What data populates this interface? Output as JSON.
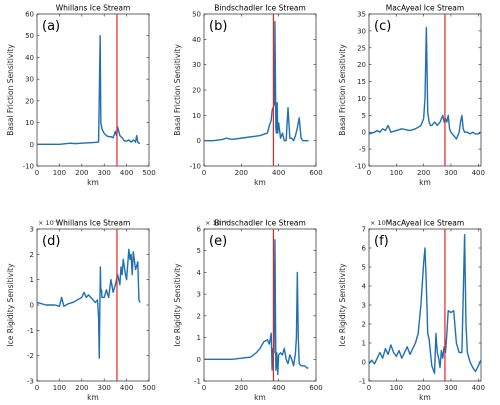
{
  "chart_data": [
    {
      "type": "line",
      "panel": "(a)",
      "title": "Whillans Ice Stream",
      "xlabel": "km",
      "ylabel": "Basal Friction Sensitivity",
      "xlim": [
        0,
        500
      ],
      "ylim": [
        -10,
        60
      ],
      "xticks": [
        0,
        100,
        200,
        300,
        400,
        500
      ],
      "yticks": [
        -10,
        0,
        10,
        20,
        30,
        40,
        50,
        60
      ],
      "exponent": "",
      "grid": false,
      "marker_km": 357,
      "line_color": "#1f6fb2",
      "marker_color": "#e8211f",
      "series": [
        {
          "x": [
            0,
            50,
            100,
            150,
            170,
            200,
            250,
            275,
            282,
            285,
            290,
            300,
            310,
            320,
            330,
            340,
            350,
            355,
            360,
            365,
            370,
            380,
            390,
            400,
            410,
            420,
            430,
            440,
            445,
            450,
            455,
            460
          ],
          "y": [
            0,
            0,
            0,
            0.5,
            0.3,
            0.5,
            0.8,
            1,
            50,
            10,
            7,
            5,
            4,
            3.5,
            3.5,
            3,
            6,
            4,
            8,
            6,
            4,
            3,
            1.5,
            1.5,
            2,
            1,
            2,
            1,
            4,
            1,
            0.5,
            0.5
          ]
        }
      ]
    },
    {
      "type": "line",
      "panel": "(b)",
      "title": "Bindschadler Ice Stream",
      "xlabel": "km",
      "ylabel": "Basal Friction Sensitivity",
      "xlim": [
        0,
        600
      ],
      "ylim": [
        -10,
        50
      ],
      "xticks": [
        0,
        200,
        400,
        600
      ],
      "yticks": [
        -10,
        0,
        10,
        20,
        30,
        40,
        50
      ],
      "exponent": "",
      "grid": false,
      "marker_km": 372,
      "line_color": "#1f6fb2",
      "marker_color": "#e8211f",
      "series": [
        {
          "x": [
            0,
            50,
            100,
            120,
            150,
            200,
            250,
            300,
            340,
            350,
            360,
            365,
            370,
            375,
            378,
            380,
            385,
            388,
            392,
            395,
            400,
            410,
            420,
            430,
            440,
            450,
            460,
            470,
            480,
            490,
            500,
            510,
            520,
            530,
            540,
            560
          ],
          "y": [
            0,
            0,
            0.5,
            1,
            0.5,
            1,
            1.5,
            2,
            3,
            6,
            8,
            12,
            13,
            14,
            15,
            47,
            5,
            3,
            15,
            3,
            7,
            1,
            3,
            0,
            0,
            13,
            1,
            1,
            0,
            2,
            5,
            9,
            1,
            0,
            0,
            0
          ]
        }
      ]
    },
    {
      "type": "line",
      "panel": "(c)",
      "title": "MacAyeal Ice Stream",
      "xlabel": "km",
      "ylabel": "Basal Friction Sensitivity",
      "xlim": [
        0,
        410
      ],
      "ylim": [
        -10,
        35
      ],
      "xticks": [
        0,
        100,
        200,
        300,
        400
      ],
      "yticks": [
        -10,
        -5,
        0,
        5,
        10,
        15,
        20,
        25,
        30,
        35
      ],
      "exponent": "",
      "grid": false,
      "marker_km": 278,
      "line_color": "#1f6fb2",
      "marker_color": "#e8211f",
      "series": [
        {
          "x": [
            0,
            20,
            30,
            40,
            50,
            60,
            70,
            80,
            100,
            120,
            150,
            170,
            190,
            200,
            205,
            210,
            215,
            220,
            225,
            230,
            240,
            250,
            260,
            265,
            270,
            275,
            280,
            285,
            290,
            295,
            300,
            310,
            320,
            330,
            335,
            340,
            345,
            350,
            360,
            370,
            380,
            390,
            400,
            410
          ],
          "y": [
            -0.5,
            0,
            0.5,
            0,
            1,
            0.5,
            2,
            0,
            0.5,
            1,
            0.5,
            1,
            2,
            4,
            10,
            31,
            6,
            3,
            2,
            2,
            3,
            2,
            3,
            4,
            5,
            3,
            4,
            3,
            5,
            1,
            0,
            -1,
            -2,
            0,
            3,
            5,
            1,
            0,
            0,
            -0.5,
            0,
            -0.5,
            -0.5,
            0
          ]
        }
      ]
    },
    {
      "type": "line",
      "panel": "(d)",
      "title": "Whillans Ice Stream",
      "xlabel": "km",
      "ylabel": "Ice Rigidity Sensitivity",
      "xlim": [
        0,
        500
      ],
      "ylim": [
        -3,
        3
      ],
      "xticks": [
        0,
        100,
        200,
        300,
        400,
        500
      ],
      "yticks": [
        -3,
        -2,
        -1,
        0,
        1,
        2,
        3
      ],
      "exponent": "× 10⁻⁵",
      "grid": false,
      "marker_km": 357,
      "line_color": "#1f6fb2",
      "marker_color": "#e8211f",
      "series": [
        {
          "x": [
            0,
            20,
            40,
            60,
            80,
            100,
            110,
            120,
            140,
            160,
            180,
            200,
            210,
            220,
            230,
            240,
            250,
            260,
            270,
            275,
            278,
            280,
            283,
            285,
            288,
            290,
            300,
            310,
            320,
            330,
            340,
            350,
            360,
            370,
            375,
            380,
            385,
            390,
            395,
            400,
            405,
            410,
            415,
            420,
            425,
            430,
            440,
            450,
            455,
            460
          ],
          "y": [
            0.1,
            0.05,
            0,
            0,
            0,
            -0.05,
            0.3,
            -0.05,
            0.05,
            0.1,
            0.2,
            0.3,
            0.5,
            0.3,
            0.4,
            0.3,
            0.2,
            0.1,
            0.2,
            -0.5,
            -2.1,
            -0.5,
            1.5,
            0.5,
            0.6,
            0.3,
            0.3,
            0.6,
            0.3,
            1.0,
            0.5,
            0.8,
            1.2,
            0.8,
            1.5,
            1.2,
            1.8,
            1.5,
            1.2,
            1.0,
            1.6,
            2.2,
            1.8,
            2.0,
            1.2,
            2.1,
            1.4,
            1.7,
            0.2,
            0.1
          ]
        }
      ]
    },
    {
      "type": "line",
      "panel": "(e)",
      "title": "Bindschadler Ice Stream",
      "xlabel": "km",
      "ylabel": "Ice Rigidity Sensitivity",
      "xlim": [
        0,
        600
      ],
      "ylim": [
        -1,
        6
      ],
      "xticks": [
        0,
        200,
        400,
        600
      ],
      "yticks": [
        -1,
        0,
        1,
        2,
        3,
        4,
        5,
        6
      ],
      "exponent": "× 10⁻⁵",
      "grid": false,
      "marker_km": 372,
      "line_color": "#1f6fb2",
      "marker_color": "#e8211f",
      "series": [
        {
          "x": [
            0,
            50,
            100,
            150,
            200,
            250,
            280,
            300,
            320,
            340,
            350,
            360,
            365,
            370,
            375,
            380,
            385,
            390,
            395,
            400,
            410,
            420,
            430,
            440,
            450,
            460,
            470,
            480,
            490,
            495,
            500,
            505,
            510,
            520,
            530,
            540,
            550,
            560
          ],
          "y": [
            0,
            0,
            0,
            0,
            0.05,
            0.1,
            0.3,
            0.5,
            0.8,
            0.9,
            0.7,
            1.2,
            -0.5,
            0.5,
            0.3,
            5.5,
            -0.5,
            0.3,
            -0.7,
            0.2,
            0.3,
            0.2,
            0.5,
            0,
            -0.2,
            0.2,
            0,
            -0.3,
            0.3,
            1.0,
            4.0,
            1.0,
            -0.2,
            -0.3,
            -0.3,
            -0.3,
            -0.4,
            -0.4
          ]
        }
      ]
    },
    {
      "type": "line",
      "panel": "(f)",
      "title": "MacAyeal Ice Stream",
      "xlabel": "km",
      "ylabel": "Ice Rigidity Sensitivity",
      "xlim": [
        0,
        410
      ],
      "ylim": [
        -1,
        7
      ],
      "xticks": [
        0,
        100,
        200,
        300,
        400
      ],
      "yticks": [
        -1,
        0,
        1,
        2,
        3,
        4,
        5,
        6,
        7
      ],
      "exponent": "× 10⁻⁵",
      "grid": false,
      "marker_km": 278,
      "line_color": "#1f6fb2",
      "marker_color": "#e8211f",
      "series": [
        {
          "x": [
            0,
            10,
            20,
            30,
            40,
            50,
            60,
            70,
            80,
            90,
            100,
            110,
            120,
            130,
            140,
            150,
            160,
            170,
            180,
            190,
            200,
            205,
            210,
            215,
            220,
            225,
            230,
            240,
            245,
            250,
            255,
            260,
            265,
            270,
            275,
            280,
            285,
            290,
            300,
            310,
            320,
            330,
            340,
            345,
            350,
            355,
            360,
            370,
            380,
            390,
            400,
            410
          ],
          "y": [
            -0.1,
            0.1,
            -0.1,
            0.2,
            0.5,
            0.2,
            0.7,
            0.4,
            0.9,
            0.5,
            0.3,
            0.6,
            0.2,
            0.5,
            0.8,
            0.4,
            0.7,
            1.0,
            1.5,
            3.0,
            5.2,
            6.0,
            4.0,
            1.5,
            1.2,
            0.5,
            -0.2,
            -0.6,
            1.5,
            0.5,
            0.2,
            -0.3,
            0.6,
            0.2,
            0.8,
            0.5,
            1.5,
            2.7,
            2.6,
            2.7,
            1.0,
            0.5,
            0.5,
            3.5,
            6.7,
            2.0,
            0.5,
            0,
            -0.3,
            -0.5,
            -0.2,
            0.1
          ]
        }
      ]
    }
  ]
}
